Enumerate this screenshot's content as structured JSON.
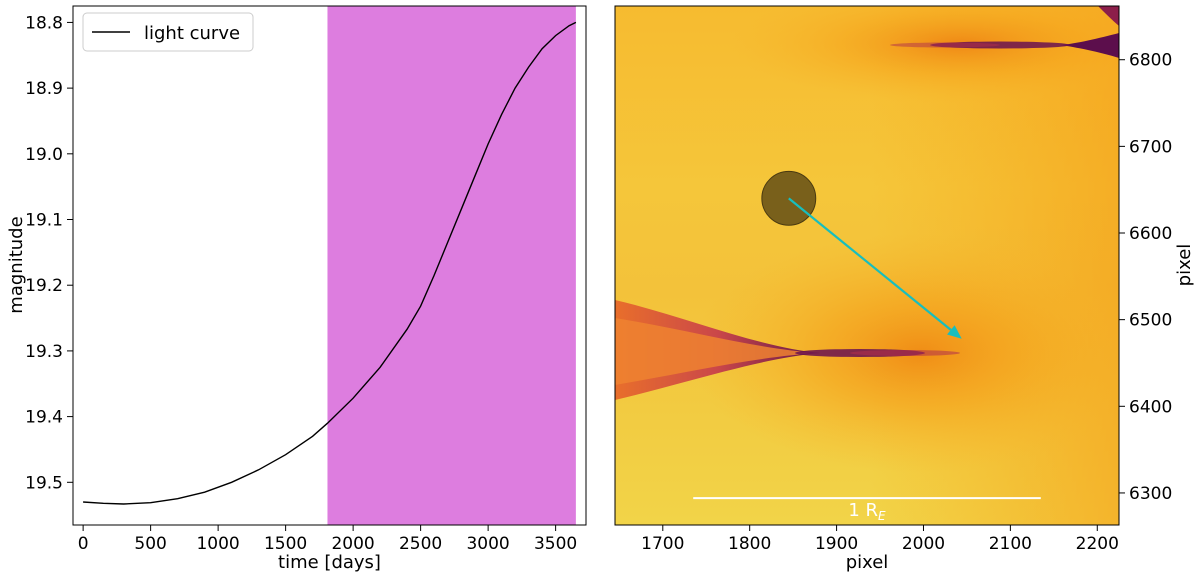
{
  "chart_data": [
    {
      "type": "line",
      "xlabel": "time [days]",
      "ylabel": "magnitude",
      "xlim": [
        -75,
        3725
      ],
      "ylim": [
        19.565,
        18.775
      ],
      "y_inverted": true,
      "xticks": [
        0,
        500,
        1000,
        1500,
        2000,
        2500,
        3000,
        3500
      ],
      "yticks": [
        18.8,
        18.9,
        19.0,
        19.1,
        19.2,
        19.3,
        19.4,
        19.5
      ],
      "ytick_labels": [
        "18.8",
        "18.9",
        "19.0",
        "19.1",
        "19.2",
        "19.3",
        "19.4",
        "19.5"
      ],
      "legend": {
        "position": "top-left",
        "entries": [
          {
            "label": "light curve",
            "color": "#000000"
          }
        ]
      },
      "shaded_region": {
        "x_start": 1810,
        "x_end": 3650,
        "color": "#dd7ddf"
      },
      "grid": false,
      "series": [
        {
          "name": "light curve",
          "color": "#000000",
          "x": [
            0,
            150,
            300,
            500,
            700,
            900,
            1100,
            1300,
            1500,
            1700,
            1810,
            2000,
            2200,
            2400,
            2500,
            2600,
            2700,
            2800,
            2900,
            3000,
            3100,
            3200,
            3300,
            3400,
            3500,
            3600,
            3650
          ],
          "y": [
            19.53,
            19.532,
            19.533,
            19.531,
            19.525,
            19.515,
            19.5,
            19.481,
            19.458,
            19.43,
            19.41,
            19.372,
            19.325,
            19.267,
            19.232,
            19.185,
            19.135,
            19.085,
            19.035,
            18.985,
            18.94,
            18.9,
            18.868,
            18.84,
            18.82,
            18.805,
            18.8
          ]
        }
      ]
    },
    {
      "type": "heatmap",
      "xlabel": "pixel",
      "ylabel": "pixel",
      "xlim": [
        1645,
        2225
      ],
      "ylim": [
        6263,
        6862
      ],
      "xticks": [
        1700,
        1800,
        1900,
        2000,
        2100,
        2200
      ],
      "yticks": [
        6300,
        6400,
        6500,
        6600,
        6700,
        6800
      ],
      "colormap": [
        "#f5e24a",
        "#f7a316",
        "#c23a4e",
        "#5c0e4c"
      ],
      "grid": false,
      "source": {
        "x": 1845,
        "y": 6640,
        "radius": 31,
        "color": "#6b5418"
      },
      "trajectory": {
        "x0": 1845,
        "y0": 6640,
        "x1": 2044,
        "y1": 6478,
        "color": "#17bebe"
      },
      "scale_bar": {
        "x0": 1735,
        "x1": 2135,
        "y": 6294,
        "label_main": "1 R",
        "label_sub": "E",
        "color": "#ffffff"
      }
    }
  ]
}
